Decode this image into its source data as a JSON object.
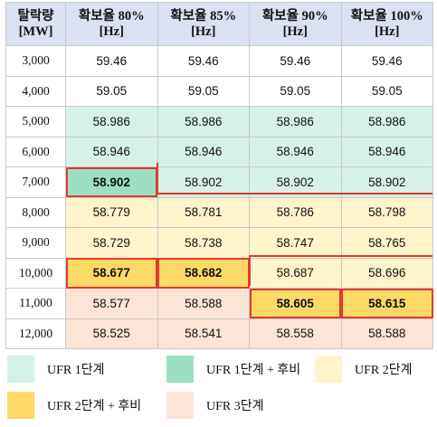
{
  "table": {
    "headers": [
      {
        "line1": "탈락량",
        "line2": "[MW]"
      },
      {
        "line1": "확보율 80%",
        "line2": "[Hz]"
      },
      {
        "line1": "확보율 85%",
        "line2": "[Hz]"
      },
      {
        "line1": "확보율 90%",
        "line2": "[Hz]"
      },
      {
        "line1": "확보율 100%",
        "line2": "[Hz]"
      }
    ],
    "rows": [
      {
        "load": "3,000",
        "v80": "59.46",
        "v85": "59.46",
        "v90": "59.46",
        "v100": "59.46"
      },
      {
        "load": "4,000",
        "v80": "59.05",
        "v85": "59.05",
        "v90": "59.05",
        "v100": "59.05"
      },
      {
        "load": "5,000",
        "v80": "58.986",
        "v85": "58.986",
        "v90": "58.986",
        "v100": "58.986"
      },
      {
        "load": "6,000",
        "v80": "58.946",
        "v85": "58.946",
        "v90": "58.946",
        "v100": "58.946"
      },
      {
        "load": "7,000",
        "v80": "58.902",
        "v85": "58.902",
        "v90": "58.902",
        "v100": "58.902"
      },
      {
        "load": "8,000",
        "v80": "58.779",
        "v85": "58.781",
        "v90": "58.786",
        "v100": "58.798"
      },
      {
        "load": "9,000",
        "v80": "58.729",
        "v85": "58.738",
        "v90": "58.747",
        "v100": "58.765"
      },
      {
        "load": "10,000",
        "v80": "58.677",
        "v85": "58.682",
        "v90": "58.687",
        "v100": "58.696"
      },
      {
        "load": "11,000",
        "v80": "58.577",
        "v85": "58.588",
        "v90": "58.605",
        "v100": "58.615"
      },
      {
        "load": "12,000",
        "v80": "58.525",
        "v85": "58.541",
        "v90": "58.558",
        "v100": "58.588"
      }
    ]
  },
  "legend": [
    {
      "label": "UFR  1단계",
      "color": "#d6f2e6"
    },
    {
      "label": "UFR  1단계  +  후비",
      "color": "#9ddfc2"
    },
    {
      "label": "UFR  2단계",
      "color": "#fff4cc"
    },
    {
      "label": "UFR  2단계  +  후비",
      "color": "#ffd966"
    },
    {
      "label": "UFR  3단계",
      "color": "#fce4d6"
    }
  ],
  "colors": {
    "header": "#d9e1f2",
    "boundary_line": "#e03a2f"
  }
}
